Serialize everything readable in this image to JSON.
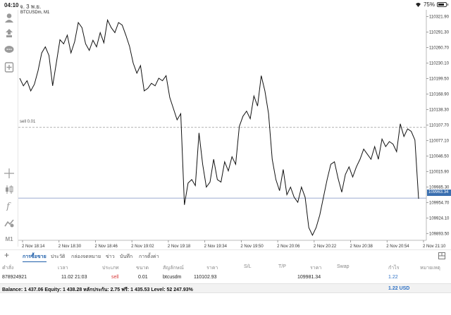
{
  "status": {
    "time": "04:10",
    "date": "จ. 3 พ.ย.",
    "battery": "75%",
    "battery_level": 0.75
  },
  "chart": {
    "symbol_label": "BTCUSDm, M1",
    "sell_line_label": "sell 0.01",
    "current_price_badge": "109963.34"
  },
  "toolbar": {
    "m1_label": "M1"
  },
  "chart_data": {
    "type": "line",
    "y_ticks": [
      "110321.90",
      "110291.30",
      "110260.70",
      "110230.10",
      "110199.50",
      "110168.90",
      "110138.30",
      "110107.70",
      "110077.10",
      "110046.50",
      "110015.90",
      "109985.30",
      "109954.70",
      "109924.10",
      "109893.50"
    ],
    "x_ticks": [
      "2 Nov 18:14",
      "2 Nov 18:30",
      "2 Nov 18:46",
      "2 Nov 19:02",
      "2 Nov 19:18",
      "2 Nov 19:34",
      "2 Nov 19:50",
      "2 Nov 20:06",
      "2 Nov 20:22",
      "2 Nov 20:38",
      "2 Nov 20:54",
      "2 Nov 21:10"
    ],
    "ylim": [
      109880,
      110335
    ],
    "sell_level": 110102.93,
    "current_price": 109963.34,
    "values": [
      110200,
      110185,
      110195,
      110175,
      110188,
      110215,
      110250,
      110262,
      110245,
      110185,
      110230,
      110276,
      110268,
      110285,
      110250,
      110272,
      110310,
      110300,
      110268,
      110255,
      110275,
      110262,
      110290,
      110270,
      110315,
      110300,
      110290,
      110310,
      110305,
      110285,
      110263,
      110230,
      110210,
      110225,
      110175,
      110180,
      110190,
      110185,
      110200,
      110195,
      110205,
      110162,
      110140,
      110118,
      110130,
      109950,
      109993,
      110000,
      109988,
      110092,
      110030,
      109985,
      109995,
      110040,
      110000,
      109995,
      110035,
      110017,
      110045,
      110030,
      110105,
      110125,
      110135,
      110120,
      110165,
      110145,
      110205,
      110175,
      110130,
      110040,
      110000,
      109978,
      110020,
      109970,
      109985,
      109965,
      109955,
      109985,
      109965,
      109905,
      109890,
      109905,
      109930,
      109965,
      110000,
      110030,
      110035,
      110002,
      109975,
      110010,
      110025,
      110005,
      110025,
      110040,
      110060,
      110050,
      110040,
      110065,
      110040,
      110080,
      110065,
      110075,
      110070,
      110055,
      110110,
      110085,
      110100,
      110095,
      110078,
      109962
    ]
  },
  "tabs": {
    "items": [
      "การซื้อขาย",
      "ประวัติ",
      "กล่องจดหมาย",
      "ข่าว",
      "บันทึก",
      "การตั้งค่า"
    ]
  },
  "table": {
    "headers": [
      "คำสั่ง",
      "เวลา",
      "ประเภท",
      "ขนาด",
      "สัญลักษณ์",
      "ราคา",
      "S/L",
      "T/P",
      "ราคา",
      "Swap",
      "กำไร",
      "หมายเหตุ"
    ],
    "row": {
      "order": "878924921",
      "time": "11.02 21:03",
      "type": "sell",
      "volume": "0.01",
      "symbol": "btcusdm",
      "open_price": "110102.93",
      "price": "109981.34",
      "profit": "1.22"
    }
  },
  "balance": {
    "text": "Balance: 1 437.06 Equity: 1 438.28 หลักประกัน: 2.75 ฟรี: 1 435.53 Level: 52 247.93%",
    "total": "1.22  USD"
  }
}
